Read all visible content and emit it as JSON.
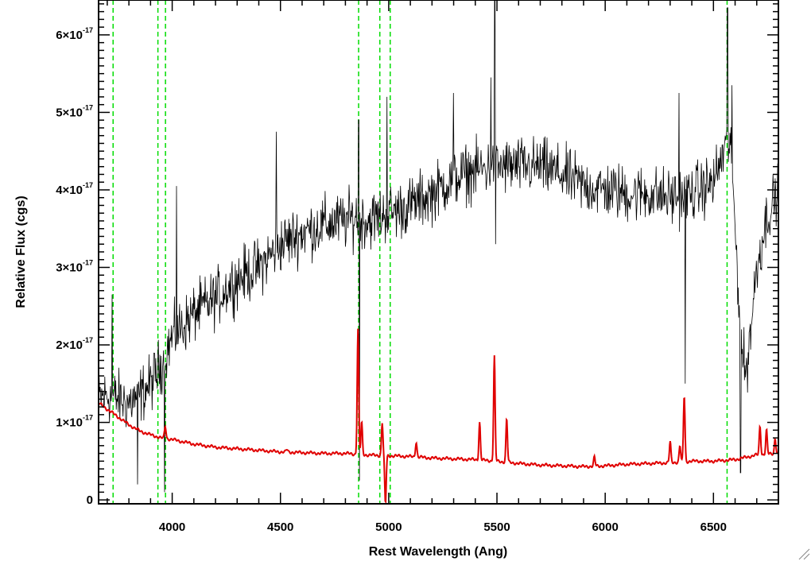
{
  "chart_data": {
    "type": "line",
    "title": "",
    "xlabel": "Rest Wavelength (Ang)",
    "ylabel": "Relative Flux (cgs)",
    "xlim": [
      3660,
      6800
    ],
    "ylim": [
      -5e-19,
      6.45e-17
    ],
    "x_ticks": [
      {
        "value": 4000,
        "label": "4000"
      },
      {
        "value": 4500,
        "label": "4500"
      },
      {
        "value": 5000,
        "label": "5000"
      },
      {
        "value": 5500,
        "label": "5500"
      },
      {
        "value": 6000,
        "label": "6000"
      },
      {
        "value": 6500,
        "label": "6500"
      }
    ],
    "y_ticks": [
      {
        "value": 0,
        "mantissa": "0",
        "exponent": ""
      },
      {
        "value": 1e-17,
        "mantissa": "1×10",
        "exponent": "-17"
      },
      {
        "value": 2e-17,
        "mantissa": "2×10",
        "exponent": "-17"
      },
      {
        "value": 3e-17,
        "mantissa": "3×10",
        "exponent": "-17"
      },
      {
        "value": 4e-17,
        "mantissa": "4×10",
        "exponent": "-17"
      },
      {
        "value": 5e-17,
        "mantissa": "5×10",
        "exponent": "-17"
      },
      {
        "value": 6e-17,
        "mantissa": "6×10",
        "exponent": "-17"
      }
    ],
    "grid": false,
    "colors": {
      "spectrum": "#000000",
      "model": "#e00000",
      "lines": "#00dd00"
    },
    "vertical_lines": [
      3727,
      3934,
      3969,
      4861,
      4959,
      5007,
      6563
    ],
    "series": [
      {
        "role": "spectrum",
        "noise_amplitude": 5.5e-18,
        "x": [
          3660,
          3700,
          3750,
          3800,
          3850,
          3900,
          3950,
          4000,
          4100,
          4200,
          4300,
          4400,
          4500,
          4600,
          4700,
          4800,
          4850,
          4900,
          5000,
          5100,
          5200,
          5300,
          5400,
          5500,
          5600,
          5700,
          5800,
          5900,
          6000,
          6100,
          6200,
          6300,
          6400,
          6500,
          6550,
          6580,
          6600,
          6630,
          6650,
          6700,
          6750,
          6800
        ],
        "y": [
          1.3e-17,
          1.35e-17,
          1.3e-17,
          1.25e-17,
          1.35e-17,
          1.5e-17,
          1.75e-17,
          2.1e-17,
          2.4e-17,
          2.6e-17,
          2.85e-17,
          3e-17,
          3.3e-17,
          3.45e-17,
          3.55e-17,
          3.6e-17,
          3.65e-17,
          3.6e-17,
          3.7e-17,
          3.8e-17,
          3.95e-17,
          4.15e-17,
          4.25e-17,
          4.3e-17,
          4.3e-17,
          4.3e-17,
          4.2e-17,
          4.05e-17,
          4e-17,
          3.95e-17,
          3.95e-17,
          3.9e-17,
          3.95e-17,
          4.1e-17,
          4.5e-17,
          4.6e-17,
          3.5e-17,
          2e-17,
          1.6e-17,
          3e-17,
          3.7e-17,
          3.95e-17
        ],
        "spikes": [
          {
            "x": 3722,
            "y": 2.65e-17
          },
          {
            "x": 3840,
            "y": 2e-18
          },
          {
            "x": 3965,
            "y": 1e-18
          },
          {
            "x": 4020,
            "y": 4.05e-17
          },
          {
            "x": 4480,
            "y": 4.75e-17
          },
          {
            "x": 4861,
            "y": 4.9e-17
          },
          {
            "x": 4864,
            "y": 2.5e-18
          },
          {
            "x": 4992,
            "y": 5.2e-17
          },
          {
            "x": 5300,
            "y": 5.25e-17
          },
          {
            "x": 5472,
            "y": 5.45e-17
          },
          {
            "x": 5490,
            "y": 6.45e-17
          },
          {
            "x": 5494,
            "y": 3.3e-17
          },
          {
            "x": 6340,
            "y": 5.25e-17
          },
          {
            "x": 6370,
            "y": 1.5e-17
          },
          {
            "x": 6565,
            "y": 6.35e-17
          },
          {
            "x": 6585,
            "y": 5.35e-17
          },
          {
            "x": 6625,
            "y": 3.5e-18
          }
        ]
      },
      {
        "role": "model",
        "x": [
          3660,
          3700,
          3750,
          3800,
          3850,
          3900,
          3950,
          4000,
          4100,
          4200,
          4300,
          4400,
          4500,
          4600,
          4700,
          4800,
          4900,
          5000,
          5100,
          5200,
          5300,
          5400,
          5500,
          5600,
          5700,
          5800,
          5900,
          6000,
          6100,
          6200,
          6300,
          6400,
          6500,
          6600,
          6700,
          6800
        ],
        "y": [
          1.25e-17,
          1.17e-17,
          1.07e-17,
          9.7e-18,
          8.9e-18,
          8.4e-18,
          8e-18,
          7.8e-18,
          7.2e-18,
          6.8e-18,
          6.6e-18,
          6.4e-18,
          6.2e-18,
          6.1e-18,
          6e-18,
          6e-18,
          5.8e-18,
          5.7e-18,
          5.6e-18,
          5.4e-18,
          5.3e-18,
          5.2e-18,
          5e-18,
          4.7e-18,
          4.5e-18,
          4.4e-18,
          4.3e-18,
          4.4e-18,
          4.6e-18,
          4.7e-18,
          4.8e-18,
          5e-18,
          5e-18,
          5.2e-18,
          5.8e-18,
          6e-18
        ],
        "peaks": [
          {
            "x": 3968,
            "y": 9.5e-18
          },
          {
            "x": 4530,
            "y": 6.5e-18
          },
          {
            "x": 4858,
            "y": 2.2e-17
          },
          {
            "x": 4875,
            "y": 1e-17
          },
          {
            "x": 4970,
            "y": 1e-17
          },
          {
            "x": 4985,
            "y": -5e-19
          },
          {
            "x": 5127,
            "y": 7.5e-18
          },
          {
            "x": 5420,
            "y": 1e-17
          },
          {
            "x": 5488,
            "y": 1.85e-17
          },
          {
            "x": 5545,
            "y": 1.05e-17
          },
          {
            "x": 5950,
            "y": 5.5e-18
          },
          {
            "x": 6300,
            "y": 7.5e-18
          },
          {
            "x": 6345,
            "y": 7e-18
          },
          {
            "x": 6365,
            "y": 1.35e-17
          },
          {
            "x": 6715,
            "y": 9.5e-18
          },
          {
            "x": 6745,
            "y": 9e-18
          },
          {
            "x": 6785,
            "y": 8e-18
          }
        ]
      }
    ]
  }
}
